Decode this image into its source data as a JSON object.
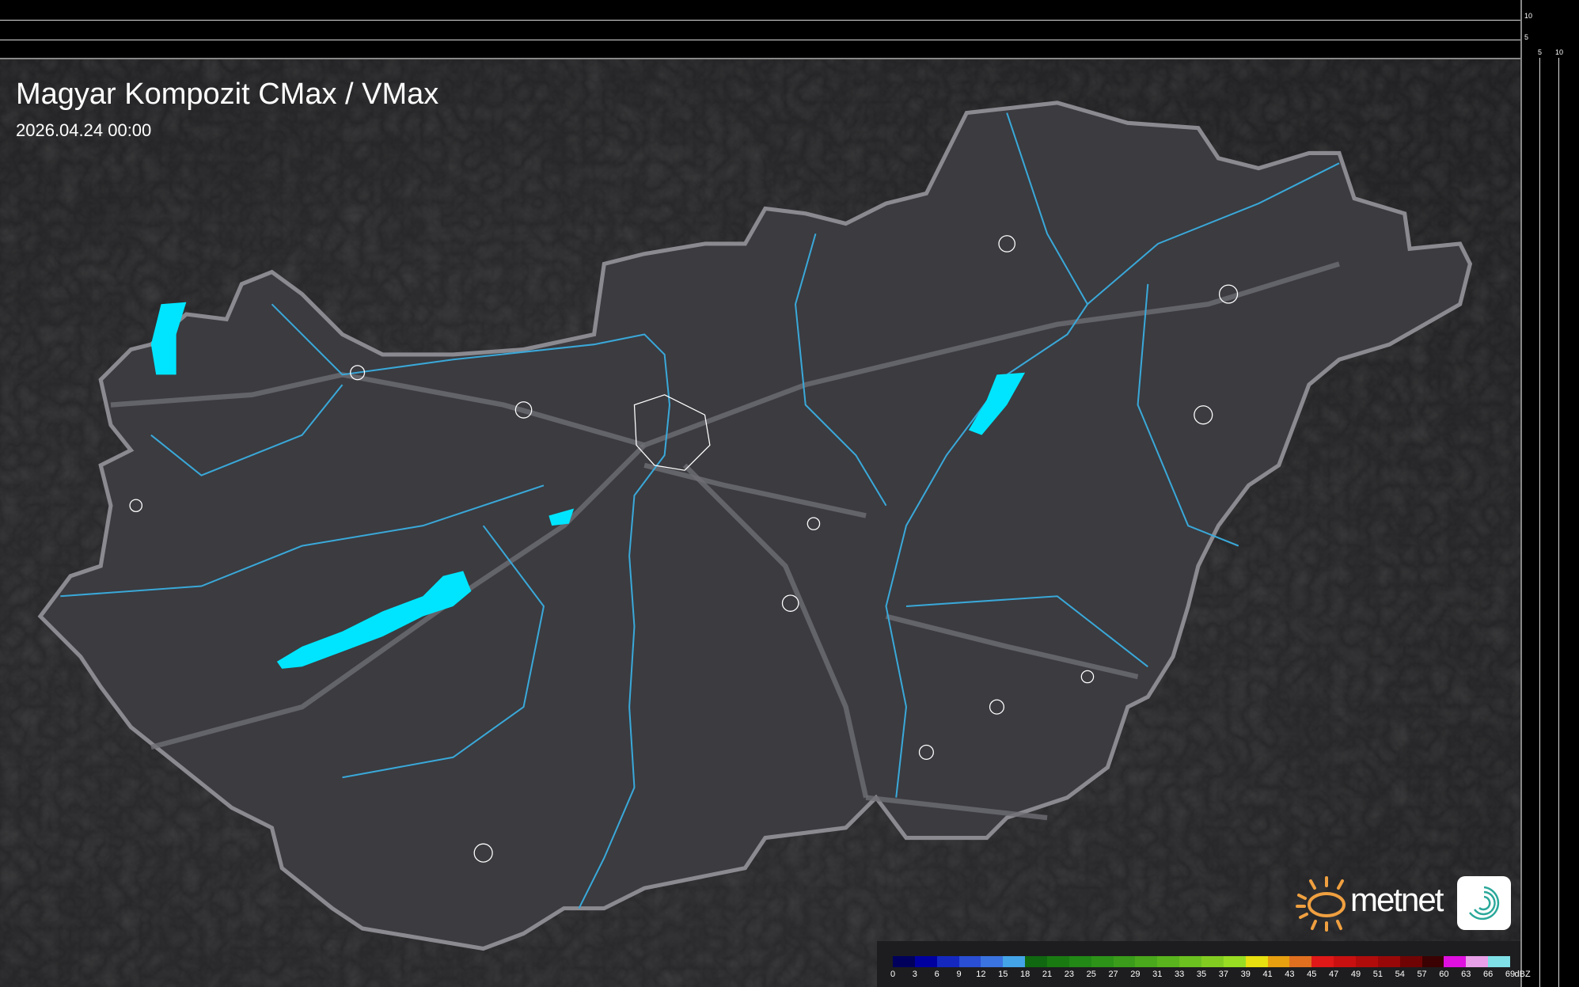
{
  "title": "Magyar Kompozit CMax / VMax",
  "datetime": "2026.04.24 00:00",
  "axes": {
    "right_ticks": [
      "10",
      "5"
    ],
    "bottom_ticks": [
      "5",
      "10"
    ]
  },
  "legend": {
    "unit": "dBZ",
    "labels": [
      "0",
      "3",
      "6",
      "9",
      "12",
      "15",
      "18",
      "21",
      "23",
      "25",
      "27",
      "29",
      "31",
      "33",
      "35",
      "37",
      "39",
      "41",
      "43",
      "45",
      "47",
      "49",
      "51",
      "54",
      "57",
      "60",
      "63",
      "66",
      "69"
    ],
    "colors": [
      "#00005c",
      "#0000a0",
      "#1428c0",
      "#2a4ed4",
      "#3a74e0",
      "#44a4e8",
      "#106810",
      "#1a7a12",
      "#228816",
      "#2c9218",
      "#3a9c1a",
      "#4aa81c",
      "#5ab41e",
      "#6cc020",
      "#82cc22",
      "#98dc24",
      "#e8e010",
      "#e8a010",
      "#e07020",
      "#e01818",
      "#c81010",
      "#b00c0c",
      "#980808",
      "#700404",
      "#3a0202",
      "#e010e0",
      "#e8a0e8",
      "#80e0e8"
    ]
  },
  "logo": {
    "text": "metnet"
  },
  "map_colors": {
    "land": "#3b3b40",
    "border": "#8a8a90",
    "river": "#3aa8d8",
    "lake": "#00e5ff",
    "road": "#6e6e74",
    "city": "#ffffff"
  }
}
